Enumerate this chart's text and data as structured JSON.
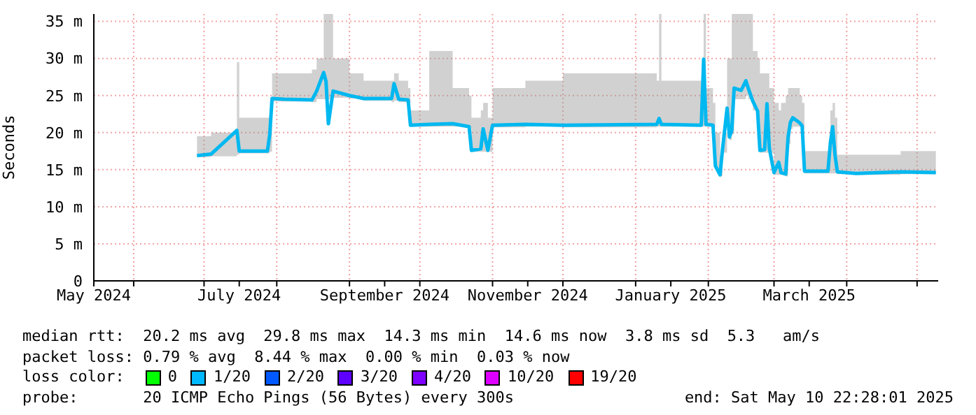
{
  "chart_data": {
    "type": "line",
    "ylabel": "Seconds",
    "x": [
      "2024-06-28",
      "2024-07-04",
      "2024-07-15",
      "2024-07-16",
      "2024-07-28",
      "2024-07-29",
      "2024-07-30",
      "2024-08-04",
      "2024-08-16",
      "2024-08-18",
      "2024-08-21",
      "2024-08-22",
      "2024-08-23",
      "2024-08-25",
      "2024-09-01",
      "2024-09-07",
      "2024-09-19",
      "2024-09-20",
      "2024-09-22",
      "2024-09-26",
      "2024-09-27",
      "2024-10-05",
      "2024-10-15",
      "2024-10-22",
      "2024-10-23",
      "2024-10-27",
      "2024-10-28",
      "2024-10-30",
      "2024-11-01",
      "2024-11-15",
      "2024-12-01",
      "2025-01-10",
      "2025-01-11",
      "2025-01-12",
      "2025-01-29",
      "2025-01-30",
      "2025-01-31",
      "2025-02-03",
      "2025-02-04",
      "2025-02-06",
      "2025-02-07",
      "2025-02-09",
      "2025-02-10",
      "2025-02-11",
      "2025-02-12",
      "2025-02-15",
      "2025-02-17",
      "2025-02-18",
      "2025-02-20",
      "2025-02-22",
      "2025-02-23",
      "2025-02-25",
      "2025-02-26",
      "2025-02-27",
      "2025-03-01",
      "2025-03-03",
      "2025-03-04",
      "2025-03-06",
      "2025-03-07",
      "2025-03-08",
      "2025-03-09",
      "2025-03-12",
      "2025-03-13",
      "2025-03-14",
      "2025-03-24",
      "2025-03-25",
      "2025-03-26",
      "2025-03-27",
      "2025-03-28",
      "2025-04-05",
      "2025-04-24",
      "2025-05-09"
    ],
    "series": [
      {
        "color": "#00b8f0",
        "values": [
          16.9,
          17.1,
          20.3,
          17.5,
          17.5,
          19.7,
          24.6,
          24.5,
          24.4,
          25.6,
          28.1,
          26.9,
          21.2,
          25.6,
          25.0,
          24.6,
          24.6,
          26.6,
          24.5,
          24.4,
          21.0,
          21.1,
          21.2,
          20.8,
          17.6,
          17.8,
          20.5,
          17.6,
          21.0,
          21.1,
          21.0,
          21.1,
          21.9,
          21.1,
          21.0,
          29.9,
          21.1,
          21.0,
          15.5,
          14.3,
          17.6,
          23.3,
          19.4,
          20.3,
          26.0,
          25.7,
          27.0,
          26.0,
          24.2,
          22.9,
          17.6,
          17.7,
          23.9,
          17.9,
          14.6,
          16.0,
          14.6,
          14.4,
          19.4,
          21.4,
          22.0,
          21.3,
          20.9,
          14.8,
          14.8,
          18.5,
          20.8,
          17.0,
          14.7,
          14.5,
          14.7,
          14.6
        ],
        "lower": [
          16.7,
          16.8,
          17.0,
          17.2,
          17.2,
          17.4,
          24.2,
          24.2,
          24.1,
          24.5,
          24.5,
          24.5,
          24.5,
          24.7,
          24.6,
          24.3,
          24.1,
          24.3,
          24.1,
          24.0,
          20.8,
          20.8,
          20.8,
          20.6,
          17.4,
          17.4,
          17.4,
          17.4,
          20.7,
          20.8,
          20.7,
          20.8,
          20.8,
          20.8,
          20.8,
          20.8,
          20.8,
          20.7,
          15.2,
          14.1,
          17.3,
          21.0,
          19.0,
          19.8,
          24.5,
          24.5,
          25.0,
          24.5,
          23.0,
          21.5,
          17.3,
          17.3,
          17.3,
          17.3,
          14.3,
          14.3,
          14.3,
          14.1,
          18.5,
          20.5,
          20.8,
          20.8,
          20.5,
          14.5,
          14.5,
          14.5,
          14.5,
          14.5,
          14.4,
          14.3,
          14.4,
          14.3
        ],
        "upper": [
          19.5,
          20.0,
          29.5,
          22.0,
          22.0,
          21.0,
          28.0,
          28.0,
          28.5,
          30.0,
          36.0,
          36.0,
          36.0,
          30.0,
          28.0,
          27.0,
          27.0,
          28.0,
          27.0,
          26.0,
          23.0,
          31.0,
          26.0,
          25.0,
          22.0,
          23.0,
          24.0,
          22.0,
          26.0,
          27.0,
          28.0,
          27.0,
          36.0,
          27.0,
          26.0,
          36.0,
          26.0,
          24.0,
          20.0,
          17.0,
          20.0,
          30.0,
          30.0,
          36.0,
          36.0,
          36.0,
          36.0,
          36.0,
          31.0,
          30.0,
          28.0,
          28.0,
          28.0,
          26.0,
          24.0,
          23.0,
          24.0,
          25.0,
          26.0,
          26.0,
          26.0,
          25.0,
          24.0,
          17.5,
          17.5,
          23.0,
          24.0,
          22.0,
          17.0,
          17.0,
          17.5,
          17.0
        ]
      }
    ],
    "xlim": [
      "2024-05-15",
      "2025-05-10"
    ],
    "xticks": [
      {
        "value": "2024-05-15",
        "label": "May 2024"
      },
      {
        "value": "2024-06-01",
        "label": null
      },
      {
        "value": "2024-07-01",
        "label": null
      },
      {
        "value": "2024-07-16",
        "label": "July 2024"
      },
      {
        "value": "2024-08-01",
        "label": null
      },
      {
        "value": "2024-09-01",
        "label": null
      },
      {
        "value": "2024-09-16",
        "label": "September 2024"
      },
      {
        "value": "2024-10-01",
        "label": null
      },
      {
        "value": "2024-11-01",
        "label": null
      },
      {
        "value": "2024-11-16",
        "label": "November 2024"
      },
      {
        "value": "2024-12-01",
        "label": null
      },
      {
        "value": "2025-01-01",
        "label": null
      },
      {
        "value": "2025-01-16",
        "label": "January 2025"
      },
      {
        "value": "2025-02-01",
        "label": null
      },
      {
        "value": "2025-03-01",
        "label": null
      },
      {
        "value": "2025-03-16",
        "label": "March 2025"
      },
      {
        "value": "2025-04-01",
        "label": null
      },
      {
        "value": "2025-05-01",
        "label": null
      }
    ],
    "ylim": [
      0,
      36
    ],
    "yticks": [
      0,
      {
        "value": 5,
        "label": "5 m"
      },
      {
        "value": 10,
        "label": "10 m"
      },
      {
        "value": 15,
        "label": "15 m"
      },
      {
        "value": 20,
        "label": "20 m"
      },
      {
        "value": 25,
        "label": "25 m"
      },
      {
        "value": 30,
        "label": "30 m"
      },
      {
        "value": 35,
        "label": "35 m"
      }
    ],
    "grid": true,
    "marker": "none",
    "line_style": "solid",
    "annotations": [
      "median rtt:  20.2 ms avg  29.8 ms max  14.3 ms min  14.6 ms now  3.8 ms sd  5.3   am/s",
      "packet loss: 0.79 % avg  8.44 % max  0.00 % min  0.03 % now",
      "loss color:",
      "0",
      "1/20",
      "2/20",
      "3/20",
      "4/20",
      "10/20",
      "19/20",
      "probe:       20 ICMP Echo Pings (56 Bytes) every 300s",
      "end: Sat May 10 22:28:01 2025"
    ]
  }
}
